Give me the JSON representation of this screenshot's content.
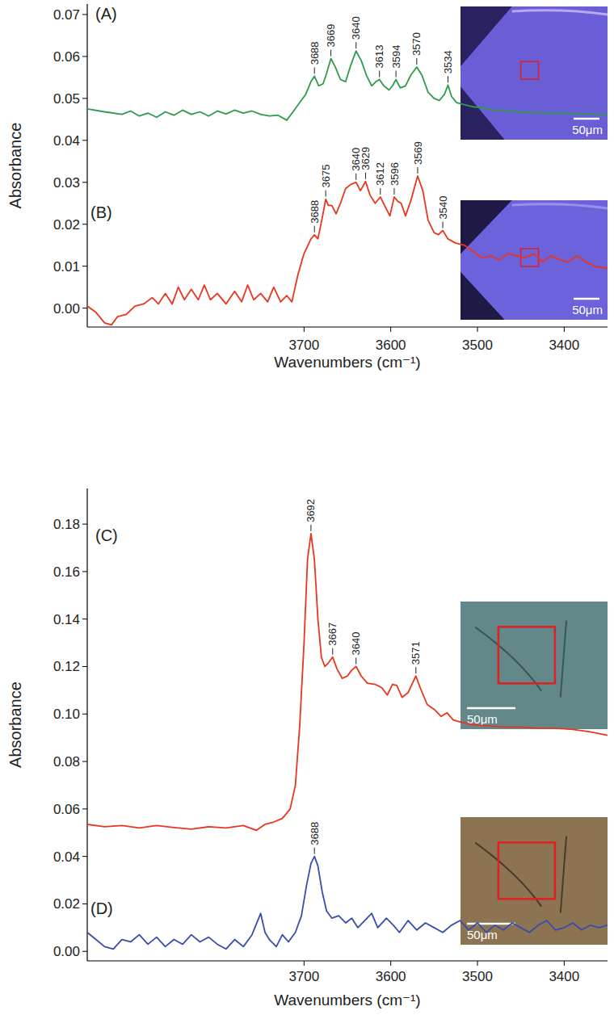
{
  "chart_data": [
    {
      "type": "line",
      "xlabel": "Wavenumbers (cm⁻¹)",
      "ylabel": "Absorbance",
      "xlim": [
        3950,
        3350
      ],
      "ylim": [
        -0.0045,
        0.0725
      ],
      "xticks": [
        3700,
        3600,
        3500,
        3400
      ],
      "yticks": [
        {
          "value": 0,
          "label": "0.00"
        },
        0.01,
        0.02,
        0.03,
        0.04,
        0.05,
        0.06,
        0.07
      ],
      "series": [
        {
          "name": "(A)",
          "color": "#2f9a4c",
          "inset_label": "50μm",
          "peaks": [
            3688,
            3669,
            3640,
            3613,
            3594,
            3570,
            3534
          ],
          "x": [
            3950,
            3930,
            3910,
            3900,
            3890,
            3880,
            3870,
            3860,
            3850,
            3840,
            3830,
            3820,
            3810,
            3800,
            3790,
            3780,
            3770,
            3760,
            3750,
            3740,
            3730,
            3720,
            3712,
            3705,
            3698,
            3692,
            3688,
            3683,
            3678,
            3674,
            3669,
            3664,
            3658,
            3652,
            3646,
            3640,
            3634,
            3628,
            3622,
            3617,
            3613,
            3608,
            3602,
            3598,
            3594,
            3589,
            3583,
            3577,
            3570,
            3564,
            3557,
            3550,
            3544,
            3538,
            3534,
            3530,
            3524,
            3515,
            3505,
            3495,
            3480,
            3465,
            3450,
            3435,
            3420,
            3400,
            3380,
            3360,
            3350
          ],
          "values": [
            0.0475,
            0.0468,
            0.0462,
            0.047,
            0.0458,
            0.0465,
            0.0455,
            0.0468,
            0.046,
            0.0472,
            0.0462,
            0.0468,
            0.0458,
            0.047,
            0.0463,
            0.0472,
            0.0465,
            0.047,
            0.0462,
            0.0458,
            0.046,
            0.0448,
            0.047,
            0.049,
            0.051,
            0.054,
            0.0553,
            0.053,
            0.0535,
            0.056,
            0.0595,
            0.0575,
            0.0545,
            0.054,
            0.058,
            0.0613,
            0.059,
            0.0555,
            0.053,
            0.054,
            0.0545,
            0.053,
            0.052,
            0.053,
            0.0545,
            0.0525,
            0.053,
            0.0555,
            0.0575,
            0.0555,
            0.0515,
            0.05,
            0.0495,
            0.051,
            0.0532,
            0.0505,
            0.049,
            0.0485,
            0.048,
            0.0478,
            0.0472,
            0.047,
            0.0468,
            0.0466,
            0.0465,
            0.0465,
            0.0463,
            0.0462,
            0.046
          ]
        },
        {
          "name": "(B)",
          "color": "#e8361f",
          "inset_label": "50μm",
          "peaks": [
            3688,
            3675,
            3640,
            3629,
            3612,
            3596,
            3569,
            3540
          ],
          "x": [
            3950,
            3940,
            3930,
            3922,
            3915,
            3905,
            3895,
            3885,
            3875,
            3868,
            3860,
            3852,
            3845,
            3838,
            3830,
            3822,
            3815,
            3808,
            3800,
            3790,
            3780,
            3772,
            3765,
            3758,
            3750,
            3742,
            3735,
            3727,
            3720,
            3714,
            3707,
            3700,
            3692,
            3688,
            3684,
            3679,
            3675,
            3672,
            3668,
            3663,
            3658,
            3652,
            3646,
            3640,
            3635,
            3629,
            3624,
            3618,
            3612,
            3606,
            3601,
            3596,
            3592,
            3588,
            3583,
            3577,
            3569,
            3563,
            3557,
            3550,
            3545,
            3540,
            3534,
            3525,
            3515,
            3505,
            3495,
            3485,
            3475,
            3465,
            3455,
            3445,
            3435,
            3425,
            3415,
            3405,
            3395,
            3385,
            3375,
            3365,
            3350
          ],
          "values": [
            0.0005,
            -0.001,
            -0.0035,
            -0.004,
            -0.002,
            -0.0015,
            0.0005,
            0.001,
            0.0025,
            0.001,
            0.0035,
            0.001,
            0.005,
            0.002,
            0.0045,
            0.002,
            0.0055,
            0.002,
            0.0035,
            0.001,
            0.004,
            0.0015,
            0.0055,
            0.002,
            0.0035,
            0.0015,
            0.005,
            0.0015,
            0.003,
            0.0015,
            0.008,
            0.013,
            0.0165,
            0.0175,
            0.0165,
            0.0215,
            0.026,
            0.0245,
            0.0245,
            0.0225,
            0.025,
            0.0285,
            0.0295,
            0.03,
            0.028,
            0.0302,
            0.027,
            0.025,
            0.0265,
            0.024,
            0.022,
            0.0265,
            0.0255,
            0.025,
            0.022,
            0.0255,
            0.0315,
            0.028,
            0.021,
            0.018,
            0.0175,
            0.0185,
            0.0165,
            0.0155,
            0.015,
            0.0135,
            0.012,
            0.0125,
            0.0115,
            0.013,
            0.0125,
            0.012,
            0.013,
            0.011,
            0.0125,
            0.0115,
            0.011,
            0.0125,
            0.011,
            0.01,
            0.0095
          ]
        }
      ]
    },
    {
      "type": "line",
      "xlabel": "Wavenumbers (cm⁻¹)",
      "ylabel": "Absorbance",
      "xlim": [
        3950,
        3350
      ],
      "ylim": [
        -0.004,
        0.195
      ],
      "xticks": [
        3700,
        3600,
        3500,
        3400
      ],
      "yticks": [
        {
          "value": 0,
          "label": "0.00"
        },
        0.02,
        0.04,
        0.06,
        0.08,
        {
          "value": 0.1,
          "label": "0.10"
        },
        0.12,
        0.14,
        0.16,
        0.18
      ],
      "series": [
        {
          "name": "(C)",
          "color": "#e8361f",
          "inset_label": "50μm",
          "peaks": [
            3692,
            3667,
            3640,
            3571
          ],
          "x": [
            3950,
            3930,
            3910,
            3890,
            3870,
            3850,
            3830,
            3810,
            3790,
            3770,
            3755,
            3745,
            3735,
            3725,
            3716,
            3710,
            3705,
            3700,
            3696,
            3692,
            3688,
            3684,
            3680,
            3676,
            3672,
            3667,
            3662,
            3656,
            3650,
            3645,
            3640,
            3634,
            3627,
            3618,
            3610,
            3604,
            3598,
            3593,
            3587,
            3580,
            3575,
            3571,
            3566,
            3558,
            3550,
            3542,
            3535,
            3528,
            3518,
            3505,
            3490,
            3470,
            3450,
            3430,
            3410,
            3390,
            3370,
            3350
          ],
          "values": [
            0.0535,
            0.0525,
            0.053,
            0.052,
            0.053,
            0.0522,
            0.0515,
            0.0525,
            0.052,
            0.053,
            0.051,
            0.0535,
            0.0545,
            0.056,
            0.06,
            0.07,
            0.095,
            0.13,
            0.165,
            0.176,
            0.165,
            0.14,
            0.124,
            0.12,
            0.1215,
            0.124,
            0.119,
            0.115,
            0.116,
            0.1185,
            0.12,
            0.116,
            0.113,
            0.1125,
            0.111,
            0.108,
            0.1125,
            0.112,
            0.107,
            0.109,
            0.113,
            0.116,
            0.111,
            0.104,
            0.102,
            0.099,
            0.1005,
            0.0975,
            0.0965,
            0.0955,
            0.095,
            0.0945,
            0.0945,
            0.094,
            0.094,
            0.0935,
            0.0925,
            0.091
          ]
        },
        {
          "name": "(D)",
          "color": "#3b4dab",
          "inset_label": "50μm",
          "peaks": [
            3688
          ],
          "x": [
            3950,
            3940,
            3930,
            3920,
            3910,
            3900,
            3890,
            3880,
            3870,
            3860,
            3850,
            3840,
            3830,
            3820,
            3810,
            3800,
            3790,
            3780,
            3770,
            3760,
            3750,
            3745,
            3740,
            3732,
            3725,
            3718,
            3710,
            3703,
            3697,
            3692,
            3688,
            3684,
            3679,
            3674,
            3668,
            3660,
            3652,
            3645,
            3638,
            3630,
            3622,
            3615,
            3605,
            3597,
            3590,
            3580,
            3570,
            3560,
            3550,
            3540,
            3530,
            3520,
            3510,
            3500,
            3490,
            3480,
            3470,
            3460,
            3450,
            3440,
            3430,
            3420,
            3410,
            3400,
            3390,
            3380,
            3370,
            3360,
            3350
          ],
          "values": [
            0.008,
            0.005,
            0.002,
            0.001,
            0.005,
            0.004,
            0.007,
            0.003,
            0.006,
            0.002,
            0.005,
            0.003,
            0.007,
            0.004,
            0.006,
            0.003,
            0.001,
            0.005,
            0.002,
            0.007,
            0.016,
            0.008,
            0.005,
            0.002,
            0.007,
            0.004,
            0.008,
            0.015,
            0.028,
            0.037,
            0.04,
            0.036,
            0.025,
            0.017,
            0.014,
            0.015,
            0.012,
            0.014,
            0.01,
            0.013,
            0.016,
            0.01,
            0.014,
            0.011,
            0.008,
            0.013,
            0.009,
            0.012,
            0.01,
            0.008,
            0.011,
            0.013,
            0.009,
            0.012,
            0.008,
            0.011,
            0.009,
            0.012,
            0.01,
            0.008,
            0.011,
            0.013,
            0.009,
            0.01,
            0.012,
            0.009,
            0.011,
            0.01,
            0.011
          ]
        }
      ]
    }
  ]
}
